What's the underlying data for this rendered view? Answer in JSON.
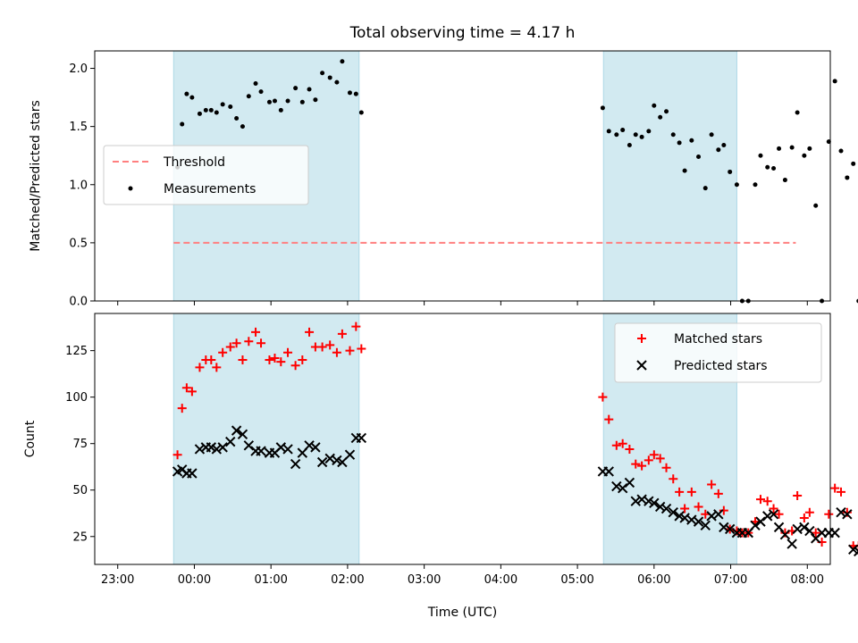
{
  "chart_data": [
    {
      "type": "scatter",
      "title": "Total observing time = 4.17 h",
      "xlabel": "",
      "ylabel": "Matched/Predicted stars",
      "ylim": [
        0,
        2.15
      ],
      "yticks": [
        "0.0",
        "0.5",
        "1.0",
        "1.5",
        "2.0"
      ],
      "xlim": [
        -1.3,
        8.3
      ],
      "shaded_bands": [
        [
          -0.27,
          2.15
        ],
        [
          5.34,
          7.08
        ]
      ],
      "shade_color": "#add8e6",
      "legend": {
        "position": "center-left",
        "entries": [
          "Threshold",
          "Measurements"
        ]
      },
      "threshold": {
        "name": "Threshold",
        "value": 0.5,
        "x_range": [
          -0.27,
          7.85
        ],
        "color": "#ff7f7f"
      },
      "series": [
        {
          "name": "Measurements",
          "color": "#000000",
          "marker": "dot",
          "points": [
            [
              -0.22,
              1.15
            ],
            [
              -0.16,
              1.52
            ],
            [
              -0.1,
              1.78
            ],
            [
              -0.03,
              1.75
            ],
            [
              0.07,
              1.61
            ],
            [
              0.15,
              1.64
            ],
            [
              0.22,
              1.64
            ],
            [
              0.29,
              1.62
            ],
            [
              0.37,
              1.69
            ],
            [
              0.47,
              1.67
            ],
            [
              0.55,
              1.57
            ],
            [
              0.63,
              1.5
            ],
            [
              0.71,
              1.76
            ],
            [
              0.8,
              1.87
            ],
            [
              0.87,
              1.8
            ],
            [
              0.98,
              1.71
            ],
            [
              1.05,
              1.72
            ],
            [
              1.13,
              1.64
            ],
            [
              1.22,
              1.72
            ],
            [
              1.32,
              1.83
            ],
            [
              1.41,
              1.71
            ],
            [
              1.5,
              1.82
            ],
            [
              1.58,
              1.73
            ],
            [
              1.67,
              1.96
            ],
            [
              1.77,
              1.92
            ],
            [
              1.86,
              1.88
            ],
            [
              1.93,
              2.06
            ],
            [
              2.03,
              1.79
            ],
            [
              2.11,
              1.78
            ],
            [
              2.18,
              1.62
            ],
            [
              5.33,
              1.66
            ],
            [
              5.41,
              1.46
            ],
            [
              5.51,
              1.43
            ],
            [
              5.59,
              1.47
            ],
            [
              5.68,
              1.34
            ],
            [
              5.76,
              1.43
            ],
            [
              5.84,
              1.41
            ],
            [
              5.93,
              1.46
            ],
            [
              6.0,
              1.68
            ],
            [
              6.08,
              1.58
            ],
            [
              6.16,
              1.63
            ],
            [
              6.25,
              1.43
            ],
            [
              6.33,
              1.36
            ],
            [
              6.4,
              1.12
            ],
            [
              6.49,
              1.38
            ],
            [
              6.58,
              1.24
            ],
            [
              6.67,
              0.97
            ],
            [
              6.75,
              1.43
            ],
            [
              6.84,
              1.3
            ],
            [
              6.91,
              1.34
            ],
            [
              6.99,
              1.11
            ],
            [
              7.08,
              1.0
            ],
            [
              7.15,
              0.0
            ],
            [
              7.23,
              0.0
            ],
            [
              7.32,
              1.0
            ],
            [
              7.39,
              1.25
            ],
            [
              7.48,
              1.15
            ],
            [
              7.56,
              1.14
            ],
            [
              7.63,
              1.31
            ],
            [
              7.71,
              1.04
            ],
            [
              7.8,
              1.32
            ],
            [
              7.87,
              1.62
            ],
            [
              7.96,
              1.25
            ],
            [
              8.03,
              1.31
            ],
            [
              8.11,
              0.82
            ],
            [
              8.19,
              0.0
            ],
            [
              8.28,
              1.37
            ],
            [
              8.36,
              1.89
            ],
            [
              8.44,
              1.29
            ],
            [
              8.52,
              1.06
            ],
            [
              8.6,
              1.18
            ],
            [
              8.67,
              0.0
            ],
            [
              8.76,
              0.0
            ]
          ]
        }
      ]
    },
    {
      "type": "scatter",
      "title": "",
      "xlabel": "Time (UTC)",
      "ylabel": "Count",
      "ylim": [
        10,
        145
      ],
      "yticks": [
        "25",
        "50",
        "75",
        "100",
        "125"
      ],
      "xlim": [
        -1.3,
        8.3
      ],
      "xticks": [
        "23:00",
        "00:00",
        "01:00",
        "02:00",
        "03:00",
        "04:00",
        "05:00",
        "06:00",
        "07:00",
        "08:00"
      ],
      "shaded_bands": [
        [
          -0.27,
          2.15
        ],
        [
          5.34,
          7.08
        ]
      ],
      "shade_color": "#add8e6",
      "legend": {
        "position": "top-right",
        "entries": [
          "Matched stars",
          "Predicted stars"
        ]
      },
      "series": [
        {
          "name": "Matched stars",
          "color": "#ff0000",
          "marker": "plus",
          "points": [
            [
              -0.22,
              69
            ],
            [
              -0.16,
              94
            ],
            [
              -0.1,
              105
            ],
            [
              -0.03,
              103
            ],
            [
              0.07,
              116
            ],
            [
              0.15,
              120
            ],
            [
              0.22,
              120
            ],
            [
              0.29,
              116
            ],
            [
              0.37,
              124
            ],
            [
              0.47,
              127
            ],
            [
              0.55,
              129
            ],
            [
              0.63,
              120
            ],
            [
              0.71,
              130
            ],
            [
              0.8,
              135
            ],
            [
              0.87,
              129
            ],
            [
              0.98,
              120
            ],
            [
              1.05,
              121
            ],
            [
              1.13,
              119
            ],
            [
              1.22,
              124
            ],
            [
              1.32,
              117
            ],
            [
              1.41,
              120
            ],
            [
              1.5,
              135
            ],
            [
              1.58,
              127
            ],
            [
              1.67,
              127
            ],
            [
              1.77,
              128
            ],
            [
              1.86,
              124
            ],
            [
              1.93,
              134
            ],
            [
              2.03,
              125
            ],
            [
              2.11,
              138
            ],
            [
              2.18,
              126
            ],
            [
              5.33,
              100
            ],
            [
              5.41,
              88
            ],
            [
              5.51,
              74
            ],
            [
              5.59,
              75
            ],
            [
              5.68,
              72
            ],
            [
              5.76,
              64
            ],
            [
              5.84,
              63
            ],
            [
              5.93,
              66
            ],
            [
              6.0,
              69
            ],
            [
              6.08,
              67
            ],
            [
              6.16,
              62
            ],
            [
              6.25,
              56
            ],
            [
              6.33,
              49
            ],
            [
              6.4,
              40
            ],
            [
              6.49,
              49
            ],
            [
              6.58,
              41
            ],
            [
              6.67,
              37
            ],
            [
              6.75,
              53
            ],
            [
              6.84,
              48
            ],
            [
              6.91,
              39
            ],
            [
              6.99,
              29
            ],
            [
              7.08,
              28
            ],
            [
              7.15,
              27
            ],
            [
              7.23,
              27
            ],
            [
              7.32,
              33
            ],
            [
              7.39,
              45
            ],
            [
              7.48,
              44
            ],
            [
              7.56,
              40
            ],
            [
              7.63,
              37
            ],
            [
              7.71,
              27
            ],
            [
              7.8,
              28
            ],
            [
              7.87,
              47
            ],
            [
              7.96,
              35
            ],
            [
              8.03,
              38
            ],
            [
              8.11,
              27
            ],
            [
              8.19,
              22
            ],
            [
              8.28,
              37
            ],
            [
              8.36,
              51
            ],
            [
              8.44,
              49
            ],
            [
              8.52,
              38
            ],
            [
              8.6,
              20
            ],
            [
              8.67,
              20
            ],
            [
              8.76,
              20
            ]
          ]
        },
        {
          "name": "Predicted stars",
          "color": "#000000",
          "marker": "x",
          "points": [
            [
              -0.22,
              60
            ],
            [
              -0.16,
              61
            ],
            [
              -0.1,
              59
            ],
            [
              -0.03,
              59
            ],
            [
              0.07,
              72
            ],
            [
              0.15,
              73
            ],
            [
              0.22,
              73
            ],
            [
              0.29,
              72
            ],
            [
              0.37,
              73
            ],
            [
              0.47,
              76
            ],
            [
              0.55,
              82
            ],
            [
              0.63,
              80
            ],
            [
              0.71,
              74
            ],
            [
              0.8,
              71
            ],
            [
              0.87,
              71
            ],
            [
              0.98,
              70
            ],
            [
              1.05,
              70
            ],
            [
              1.13,
              73
            ],
            [
              1.22,
              72
            ],
            [
              1.32,
              64
            ],
            [
              1.41,
              70
            ],
            [
              1.5,
              74
            ],
            [
              1.58,
              73
            ],
            [
              1.67,
              65
            ],
            [
              1.77,
              67
            ],
            [
              1.86,
              66
            ],
            [
              1.93,
              65
            ],
            [
              2.03,
              69
            ],
            [
              2.11,
              78
            ],
            [
              2.18,
              78
            ],
            [
              5.33,
              60
            ],
            [
              5.41,
              60
            ],
            [
              5.51,
              52
            ],
            [
              5.59,
              51
            ],
            [
              5.68,
              54
            ],
            [
              5.76,
              44
            ],
            [
              5.84,
              45
            ],
            [
              5.93,
              44
            ],
            [
              6.0,
              43
            ],
            [
              6.08,
              41
            ],
            [
              6.16,
              40
            ],
            [
              6.25,
              38
            ],
            [
              6.33,
              36
            ],
            [
              6.4,
              35
            ],
            [
              6.49,
              34
            ],
            [
              6.58,
              33
            ],
            [
              6.67,
              31
            ],
            [
              6.75,
              36
            ],
            [
              6.84,
              37
            ],
            [
              6.91,
              30
            ],
            [
              6.99,
              29
            ],
            [
              7.08,
              27
            ],
            [
              7.15,
              27
            ],
            [
              7.23,
              27
            ],
            [
              7.32,
              31
            ],
            [
              7.39,
              33
            ],
            [
              7.48,
              36
            ],
            [
              7.56,
              37
            ],
            [
              7.63,
              30
            ],
            [
              7.71,
              26
            ],
            [
              7.8,
              21
            ],
            [
              7.87,
              29
            ],
            [
              7.96,
              30
            ],
            [
              8.03,
              28
            ],
            [
              8.11,
              24
            ],
            [
              8.19,
              27
            ],
            [
              8.28,
              27
            ],
            [
              8.36,
              27
            ],
            [
              8.44,
              38
            ],
            [
              8.52,
              37
            ],
            [
              8.6,
              18
            ],
            [
              8.67,
              17
            ],
            [
              8.76,
              17
            ]
          ]
        }
      ]
    }
  ]
}
